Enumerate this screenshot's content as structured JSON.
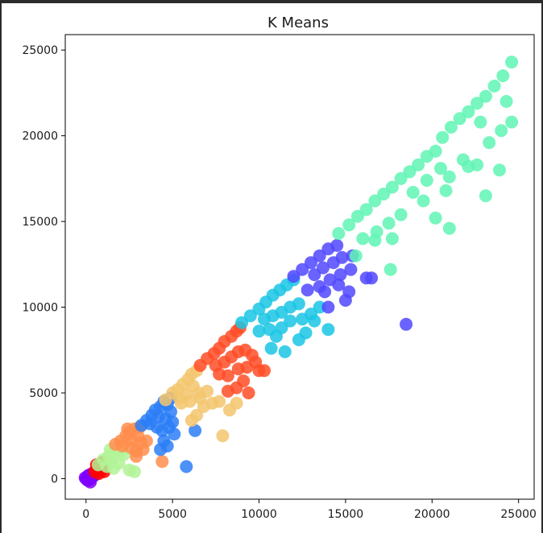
{
  "chart_data": {
    "type": "scatter",
    "title": "K Means",
    "xlabel": "",
    "ylabel": "",
    "xlim": [
      -1200,
      25900
    ],
    "ylim": [
      -1200,
      25900
    ],
    "xticks": [
      0,
      5000,
      10000,
      15000,
      20000,
      25000
    ],
    "yticks": [
      0,
      5000,
      10000,
      15000,
      20000,
      25000
    ],
    "xtick_labels": [
      "0",
      "5000",
      "10000",
      "15000",
      "20000",
      "25000"
    ],
    "ytick_labels": [
      "0",
      "5000",
      "10000",
      "15000",
      "20000",
      "25000"
    ],
    "grid": false,
    "series": [
      {
        "color": "#8000ff",
        "points": [
          [
            0,
            0
          ],
          [
            100,
            -100
          ],
          [
            200,
            100
          ],
          [
            300,
            0
          ],
          [
            150,
            200
          ],
          [
            50,
            -50
          ],
          [
            400,
            150
          ],
          [
            250,
            -200
          ],
          [
            350,
            300
          ],
          [
            -50,
            50
          ],
          [
            500,
            200
          ],
          [
            120,
            120
          ]
        ]
      },
      {
        "color": "#ff0000",
        "points": [
          [
            500,
            400
          ],
          [
            700,
            600
          ],
          [
            900,
            800
          ],
          [
            800,
            500
          ],
          [
            1000,
            600
          ],
          [
            600,
            800
          ],
          [
            1100,
            900
          ],
          [
            750,
            300
          ],
          [
            950,
            950
          ],
          [
            650,
            650
          ],
          [
            850,
            700
          ],
          [
            1050,
            400
          ]
        ]
      },
      {
        "color": "#b2f396",
        "points": [
          [
            700,
            800
          ],
          [
            1000,
            1100
          ],
          [
            1300,
            1300
          ],
          [
            1600,
            1500
          ],
          [
            1200,
            700
          ],
          [
            1500,
            1000
          ],
          [
            1800,
            1800
          ],
          [
            1400,
            1700
          ],
          [
            2000,
            1600
          ],
          [
            1900,
            900
          ],
          [
            2500,
            500
          ],
          [
            2200,
            1400
          ],
          [
            1600,
            600
          ],
          [
            2800,
            400
          ]
        ]
      },
      {
        "color": "#ff8d4d",
        "points": [
          [
            1700,
            2000
          ],
          [
            2000,
            2200
          ],
          [
            2300,
            2500
          ],
          [
            2500,
            2700
          ],
          [
            2800,
            2900
          ],
          [
            3000,
            2500
          ],
          [
            2600,
            1800
          ],
          [
            2900,
            1600
          ],
          [
            3200,
            2100
          ],
          [
            2400,
            2900
          ],
          [
            3100,
            3000
          ],
          [
            2700,
            2200
          ],
          [
            2100,
            1900
          ],
          [
            3300,
            1700
          ],
          [
            2900,
            1300
          ],
          [
            3500,
            2200
          ],
          [
            4400,
            1000
          ]
        ]
      },
      {
        "color": "#2c7ef7",
        "points": [
          [
            3200,
            3100
          ],
          [
            3500,
            3400
          ],
          [
            3800,
            3700
          ],
          [
            4000,
            4000
          ],
          [
            4300,
            4200
          ],
          [
            4500,
            4500
          ],
          [
            4700,
            4300
          ],
          [
            4200,
            3600
          ],
          [
            4600,
            3500
          ],
          [
            4900,
            3900
          ],
          [
            4400,
            2800
          ],
          [
            4800,
            3000
          ],
          [
            4500,
            2200
          ],
          [
            4700,
            1900
          ],
          [
            5000,
            3300
          ],
          [
            4100,
            3000
          ],
          [
            3700,
            3200
          ],
          [
            5100,
            2600
          ],
          [
            4300,
            1700
          ],
          [
            6300,
            2800
          ],
          [
            5800,
            700
          ],
          [
            4900,
            4700
          ]
        ]
      },
      {
        "color": "#f3c56f",
        "points": [
          [
            4600,
            4600
          ],
          [
            5000,
            5000
          ],
          [
            5300,
            5200
          ],
          [
            5600,
            5500
          ],
          [
            5900,
            5800
          ],
          [
            6100,
            6100
          ],
          [
            6400,
            6300
          ],
          [
            6200,
            5400
          ],
          [
            5800,
            4900
          ],
          [
            6500,
            5000
          ],
          [
            5500,
            4400
          ],
          [
            6000,
            4500
          ],
          [
            6600,
            4700
          ],
          [
            7000,
            5100
          ],
          [
            6800,
            4200
          ],
          [
            6400,
            3700
          ],
          [
            7300,
            4400
          ],
          [
            7700,
            4500
          ],
          [
            8300,
            4000
          ],
          [
            6100,
            3400
          ],
          [
            8700,
            4400
          ],
          [
            7900,
            2500
          ],
          [
            5400,
            4700
          ]
        ]
      },
      {
        "color": "#ff4d27",
        "points": [
          [
            6600,
            6600
          ],
          [
            7000,
            7000
          ],
          [
            7400,
            7300
          ],
          [
            7700,
            7600
          ],
          [
            8000,
            8000
          ],
          [
            8400,
            8300
          ],
          [
            8700,
            8600
          ],
          [
            8900,
            8800
          ],
          [
            7500,
            6600
          ],
          [
            8000,
            6800
          ],
          [
            8400,
            7100
          ],
          [
            8800,
            7400
          ],
          [
            9200,
            7500
          ],
          [
            9600,
            7200
          ],
          [
            7700,
            6100
          ],
          [
            8200,
            6000
          ],
          [
            8800,
            6400
          ],
          [
            9300,
            6500
          ],
          [
            10000,
            6300
          ],
          [
            10300,
            6300
          ],
          [
            9100,
            5700
          ],
          [
            8700,
            5300
          ],
          [
            9400,
            5000
          ],
          [
            8200,
            5100
          ],
          [
            9800,
            6800
          ]
        ]
      },
      {
        "color": "#1ac5e4",
        "points": [
          [
            9000,
            9100
          ],
          [
            9500,
            9500
          ],
          [
            10000,
            9900
          ],
          [
            10400,
            10300
          ],
          [
            10800,
            10700
          ],
          [
            11200,
            11000
          ],
          [
            11600,
            11300
          ],
          [
            12000,
            11600
          ],
          [
            10300,
            9300
          ],
          [
            10800,
            9500
          ],
          [
            11300,
            9700
          ],
          [
            11800,
            10000
          ],
          [
            12300,
            10200
          ],
          [
            10000,
            8600
          ],
          [
            10600,
            8700
          ],
          [
            11300,
            8800
          ],
          [
            11800,
            9200
          ],
          [
            12500,
            9300
          ],
          [
            13000,
            9600
          ],
          [
            13500,
            10000
          ],
          [
            12700,
            8500
          ],
          [
            13200,
            9200
          ],
          [
            14000,
            8700
          ],
          [
            10700,
            7600
          ],
          [
            11500,
            7400
          ],
          [
            12300,
            8100
          ],
          [
            11000,
            8300
          ]
        ]
      },
      {
        "color": "#5148ff",
        "points": [
          [
            12000,
            11800
          ],
          [
            12500,
            12200
          ],
          [
            13000,
            12600
          ],
          [
            13500,
            13000
          ],
          [
            14000,
            13400
          ],
          [
            14500,
            13600
          ],
          [
            13200,
            11900
          ],
          [
            13700,
            12300
          ],
          [
            14300,
            12600
          ],
          [
            14800,
            12900
          ],
          [
            15400,
            13000
          ],
          [
            13500,
            11200
          ],
          [
            14100,
            11600
          ],
          [
            14700,
            11900
          ],
          [
            15300,
            12200
          ],
          [
            12800,
            11000
          ],
          [
            13800,
            10900
          ],
          [
            14600,
            11300
          ],
          [
            15200,
            10900
          ],
          [
            16200,
            11700
          ],
          [
            15000,
            10400
          ],
          [
            14000,
            10000
          ],
          [
            18500,
            9000
          ],
          [
            16500,
            11700
          ]
        ]
      },
      {
        "color": "#60f5b4",
        "points": [
          [
            14600,
            14300
          ],
          [
            15200,
            14800
          ],
          [
            15700,
            15300
          ],
          [
            16200,
            15700
          ],
          [
            16700,
            16200
          ],
          [
            17200,
            16600
          ],
          [
            17700,
            17000
          ],
          [
            18200,
            17500
          ],
          [
            18700,
            17900
          ],
          [
            19200,
            18300
          ],
          [
            19700,
            18800
          ],
          [
            20200,
            19100
          ],
          [
            20600,
            19900
          ],
          [
            21100,
            20500
          ],
          [
            21600,
            21000
          ],
          [
            22100,
            21400
          ],
          [
            22600,
            21900
          ],
          [
            23100,
            22300
          ],
          [
            23600,
            22900
          ],
          [
            24100,
            23500
          ],
          [
            24600,
            24300
          ],
          [
            16000,
            14000
          ],
          [
            16800,
            14400
          ],
          [
            17500,
            14900
          ],
          [
            18200,
            15400
          ],
          [
            17700,
            14000
          ],
          [
            18900,
            16700
          ],
          [
            19700,
            17400
          ],
          [
            20500,
            18100
          ],
          [
            21000,
            17600
          ],
          [
            21800,
            18600
          ],
          [
            22600,
            18300
          ],
          [
            23300,
            19600
          ],
          [
            24000,
            20300
          ],
          [
            24600,
            20800
          ],
          [
            20200,
            15200
          ],
          [
            21000,
            14600
          ],
          [
            22100,
            18200
          ],
          [
            23100,
            16500
          ],
          [
            23900,
            18000
          ],
          [
            15600,
            13000
          ],
          [
            16700,
            13900
          ],
          [
            17600,
            12200
          ],
          [
            19500,
            16200
          ],
          [
            20800,
            16800
          ],
          [
            22800,
            20800
          ],
          [
            24300,
            22000
          ]
        ]
      }
    ]
  }
}
